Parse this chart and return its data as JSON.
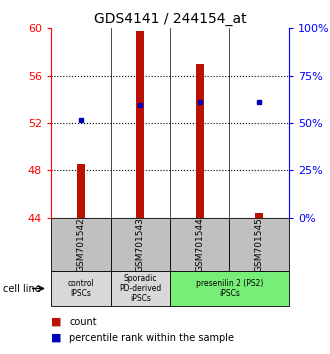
{
  "title": "GDS4141 / 244154_at",
  "samples": [
    "GSM701542",
    "GSM701543",
    "GSM701544",
    "GSM701545"
  ],
  "bar_values": [
    48.5,
    59.8,
    57.0,
    44.4
  ],
  "bar_base": 44.0,
  "percentile_values_pct": [
    51.5,
    59.5,
    61.0,
    61.0
  ],
  "ylim_left": [
    44,
    60
  ],
  "ylim_right": [
    0,
    100
  ],
  "yticks_left": [
    44,
    48,
    52,
    56,
    60
  ],
  "yticks_right": [
    0,
    25,
    50,
    75,
    100
  ],
  "bar_color": "#bb1100",
  "dot_color": "#0000bb",
  "cell_line_labels": [
    "control\nIPSCs",
    "Sporadic\nPD-derived\niPSCs",
    "presenilin 2 (PS2)\niPSCs"
  ],
  "cell_line_spans": [
    [
      0,
      0
    ],
    [
      1,
      1
    ],
    [
      2,
      3
    ]
  ],
  "cell_line_colors": [
    "#d8d8d8",
    "#d8d8d8",
    "#77ee77"
  ],
  "sample_box_color": "#c0c0c0",
  "legend_count_label": "count",
  "legend_percentile_label": "percentile rank within the sample"
}
